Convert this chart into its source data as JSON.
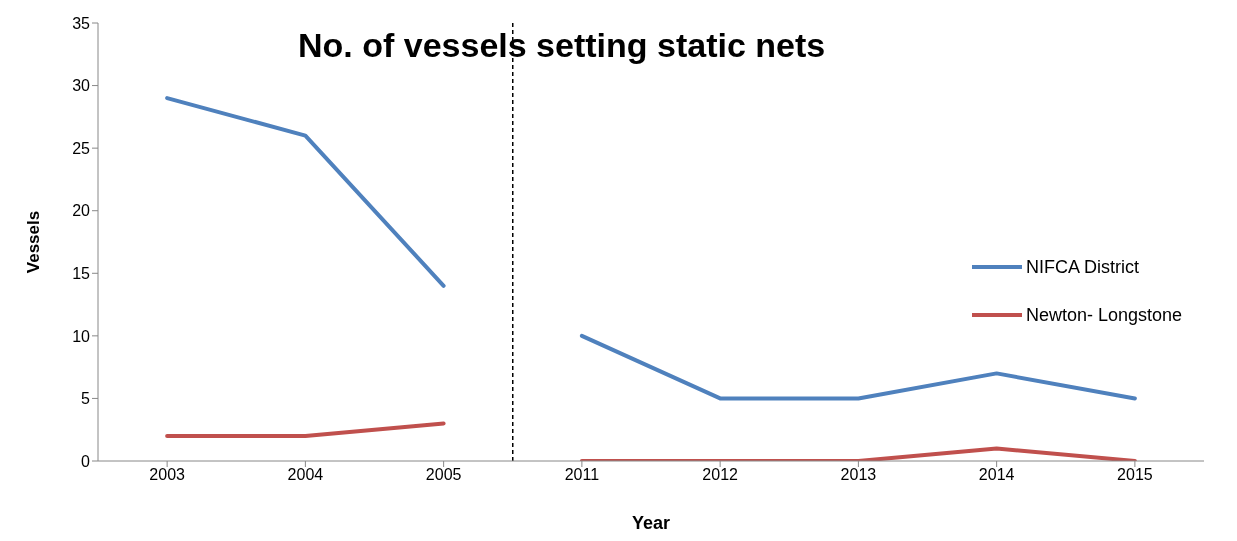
{
  "chart_data": {
    "type": "line",
    "title": "No. of vessels setting static nets",
    "xlabel": "Year",
    "ylabel": "Vessels",
    "categories": [
      "2003",
      "2004",
      "2005",
      "2011",
      "2012",
      "2013",
      "2014",
      "2015"
    ],
    "series": [
      {
        "name": "NIFCA District",
        "color": "#4f81bd",
        "values": [
          29,
          26,
          14,
          10,
          5,
          5,
          7,
          5
        ]
      },
      {
        "name": "Newton- Longstone",
        "color": "#c0504d",
        "values": [
          2,
          2,
          3,
          0,
          0,
          0,
          1,
          0
        ]
      }
    ],
    "ylim": [
      0,
      35
    ],
    "yticks": [
      0,
      5,
      10,
      15,
      20,
      25,
      30,
      35
    ],
    "grid": false,
    "legend": "right",
    "marker": "none",
    "line_style": "solid"
  }
}
